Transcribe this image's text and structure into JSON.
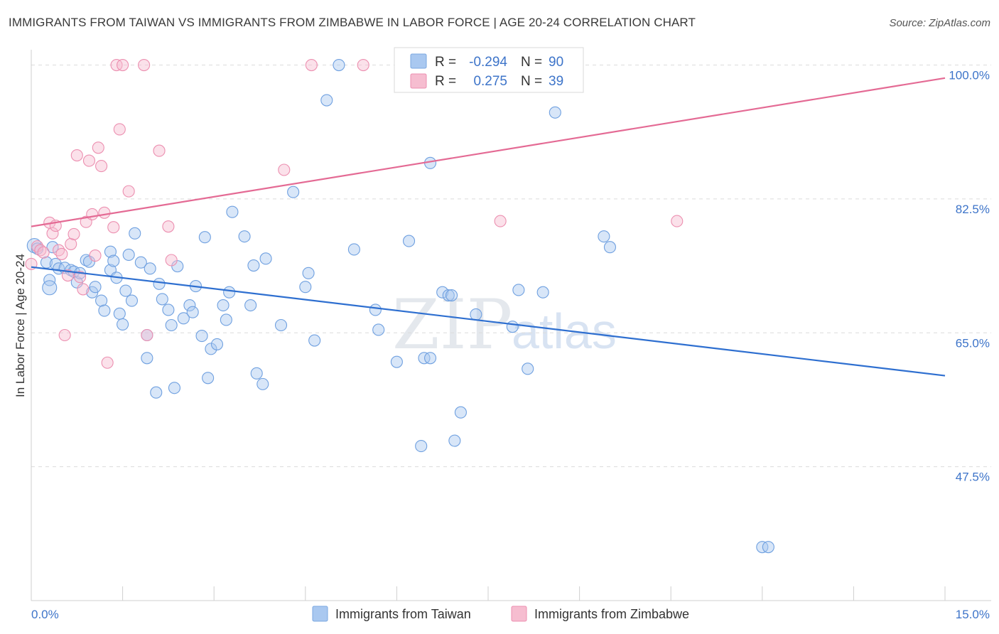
{
  "title": "IMMIGRANTS FROM TAIWAN VS IMMIGRANTS FROM ZIMBABWE IN LABOR FORCE | AGE 20-24 CORRELATION CHART",
  "source": "Source: ZipAtlas.com",
  "watermark": {
    "part1": "ZIP",
    "part2": "atlas"
  },
  "legend": {
    "rows": [
      {
        "r_label": "R =",
        "r_value": "-0.294",
        "n_label": "N =",
        "n_value": "90",
        "color": "#a9c8f0",
        "stroke": "#7aa7e0"
      },
      {
        "r_label": "R =",
        "r_value": "0.275",
        "n_label": "N =",
        "n_value": "39",
        "color": "#f6bdd0",
        "stroke": "#ec8fb0"
      }
    ]
  },
  "bottom_legend": [
    {
      "label": "Immigrants from Taiwan",
      "color": "#a9c8f0",
      "stroke": "#7aa7e0"
    },
    {
      "label": "Immigrants from Zimbabwe",
      "color": "#f6bdd0",
      "stroke": "#ec8fb0"
    }
  ],
  "chart_data": {
    "type": "scatter",
    "title": "IMMIGRANTS FROM TAIWAN VS IMMIGRANTS FROM ZIMBABWE IN LABOR FORCE | AGE 20-24 CORRELATION CHART",
    "xlabel": "",
    "ylabel": "In Labor Force | Age 20-24",
    "xlim": [
      0,
      15
    ],
    "ylim": [
      30,
      102
    ],
    "x_tick_labels": [
      {
        "value": 0,
        "label": "0.0%"
      },
      {
        "value": 15,
        "label": "15.0%"
      }
    ],
    "y_ticks": [
      {
        "value": 100,
        "label": "100.0%"
      },
      {
        "value": 82.5,
        "label": "82.5%"
      },
      {
        "value": 65,
        "label": "65.0%"
      },
      {
        "value": 47.5,
        "label": "47.5%"
      }
    ],
    "x_minor_ticks": [
      0,
      1.5,
      3,
      4.5,
      6,
      7.5,
      9,
      10.5,
      12,
      13.5,
      15
    ],
    "grid": true,
    "series": [
      {
        "name": "Immigrants from Taiwan",
        "color": "#6fa0e0",
        "fill": "#a9c8f0",
        "trend": {
          "x": [
            0,
            15
          ],
          "y": [
            73.6,
            59.4
          ],
          "color": "#2e6fd0"
        },
        "points": [
          [
            0.05,
            76.4
          ],
          [
            0.1,
            76.0
          ],
          [
            0.25,
            74.2
          ],
          [
            0.3,
            71.9
          ],
          [
            0.35,
            76.2
          ],
          [
            0.4,
            74.0
          ],
          [
            0.45,
            73.4
          ],
          [
            0.55,
            73.5
          ],
          [
            0.65,
            73.2
          ],
          [
            0.7,
            73.0
          ],
          [
            0.75,
            71.6
          ],
          [
            0.8,
            72.8
          ],
          [
            0.9,
            74.5
          ],
          [
            0.95,
            74.3
          ],
          [
            1.0,
            70.3
          ],
          [
            1.05,
            71.0
          ],
          [
            1.15,
            69.2
          ],
          [
            1.2,
            67.9
          ],
          [
            1.3,
            73.2
          ],
          [
            1.3,
            75.6
          ],
          [
            1.35,
            74.4
          ],
          [
            1.4,
            72.2
          ],
          [
            1.45,
            67.5
          ],
          [
            1.5,
            66.1
          ],
          [
            1.55,
            70.5
          ],
          [
            1.6,
            75.2
          ],
          [
            1.65,
            69.2
          ],
          [
            1.7,
            78.0
          ],
          [
            1.8,
            74.2
          ],
          [
            1.9,
            64.7
          ],
          [
            1.9,
            61.7
          ],
          [
            1.95,
            73.4
          ],
          [
            2.05,
            57.2
          ],
          [
            2.1,
            71.4
          ],
          [
            2.15,
            69.4
          ],
          [
            2.25,
            68.0
          ],
          [
            2.3,
            66.0
          ],
          [
            2.35,
            57.8
          ],
          [
            2.4,
            73.7
          ],
          [
            2.5,
            66.9
          ],
          [
            2.6,
            68.6
          ],
          [
            2.65,
            67.7
          ],
          [
            2.7,
            71.1
          ],
          [
            2.8,
            64.6
          ],
          [
            2.85,
            77.5
          ],
          [
            2.9,
            59.1
          ],
          [
            2.95,
            62.9
          ],
          [
            3.05,
            63.5
          ],
          [
            3.15,
            68.6
          ],
          [
            3.2,
            66.7
          ],
          [
            3.25,
            70.3
          ],
          [
            3.3,
            80.8
          ],
          [
            3.5,
            77.6
          ],
          [
            3.6,
            68.6
          ],
          [
            3.65,
            73.8
          ],
          [
            3.7,
            59.7
          ],
          [
            3.8,
            58.3
          ],
          [
            3.85,
            74.7
          ],
          [
            4.1,
            66.0
          ],
          [
            4.3,
            83.4
          ],
          [
            4.5,
            71.0
          ],
          [
            4.55,
            72.8
          ],
          [
            4.65,
            64.0
          ],
          [
            4.85,
            95.4
          ],
          [
            5.05,
            100.0
          ],
          [
            5.3,
            75.9
          ],
          [
            5.65,
            68.0
          ],
          [
            5.7,
            65.4
          ],
          [
            6.0,
            61.2
          ],
          [
            6.2,
            77.0
          ],
          [
            6.4,
            50.2
          ],
          [
            6.45,
            61.7
          ],
          [
            6.55,
            61.7
          ],
          [
            6.55,
            87.2
          ],
          [
            6.75,
            70.3
          ],
          [
            6.85,
            69.9
          ],
          [
            6.9,
            69.9
          ],
          [
            6.95,
            50.9
          ],
          [
            7.05,
            54.6
          ],
          [
            7.3,
            67.4
          ],
          [
            7.9,
            65.8
          ],
          [
            8.0,
            70.6
          ],
          [
            8.15,
            60.3
          ],
          [
            8.4,
            70.3
          ],
          [
            8.6,
            93.8
          ],
          [
            9.4,
            77.6
          ],
          [
            9.5,
            76.2
          ],
          [
            12.0,
            37.0
          ],
          [
            12.1,
            37.0
          ],
          [
            0.3,
            70.9
          ]
        ]
      },
      {
        "name": "Immigrants from Zimbabwe",
        "color": "#ec8fb0",
        "fill": "#f6bdd0",
        "trend": {
          "x": [
            0,
            15
          ],
          "y": [
            78.9,
            98.3
          ],
          "color": "#e46a94"
        },
        "points": [
          [
            0.0,
            74.0
          ],
          [
            0.1,
            76.3
          ],
          [
            0.15,
            75.8
          ],
          [
            0.2,
            75.5
          ],
          [
            0.3,
            79.4
          ],
          [
            0.35,
            78.0
          ],
          [
            0.4,
            79.0
          ],
          [
            0.45,
            75.8
          ],
          [
            0.5,
            75.3
          ],
          [
            0.55,
            64.7
          ],
          [
            0.6,
            72.5
          ],
          [
            0.65,
            76.6
          ],
          [
            0.7,
            77.9
          ],
          [
            0.75,
            88.2
          ],
          [
            0.8,
            72.3
          ],
          [
            0.85,
            70.7
          ],
          [
            0.9,
            79.5
          ],
          [
            0.95,
            87.5
          ],
          [
            1.0,
            80.5
          ],
          [
            1.05,
            75.1
          ],
          [
            1.1,
            89.2
          ],
          [
            1.15,
            86.8
          ],
          [
            1.2,
            80.7
          ],
          [
            1.25,
            61.1
          ],
          [
            1.35,
            78.8
          ],
          [
            1.4,
            100.0
          ],
          [
            1.45,
            91.6
          ],
          [
            1.5,
            100.0
          ],
          [
            1.6,
            83.5
          ],
          [
            1.85,
            100.0
          ],
          [
            1.9,
            64.7
          ],
          [
            2.1,
            88.8
          ],
          [
            2.25,
            78.9
          ],
          [
            2.3,
            74.5
          ],
          [
            4.15,
            86.3
          ],
          [
            4.6,
            100.0
          ],
          [
            5.45,
            100.0
          ],
          [
            7.7,
            79.6
          ],
          [
            10.6,
            79.6
          ]
        ]
      }
    ]
  }
}
